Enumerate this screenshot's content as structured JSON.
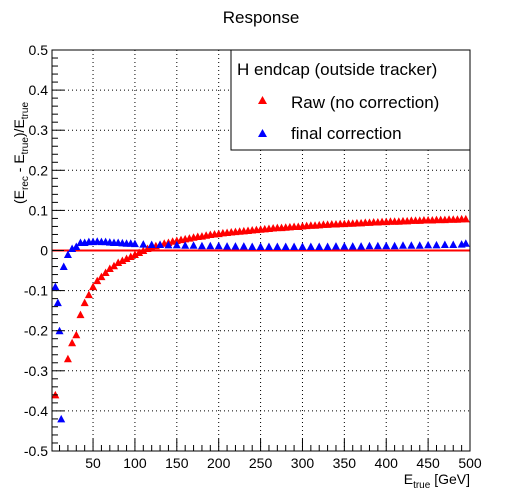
{
  "chart_data": {
    "type": "scatter",
    "title": "Response",
    "xlabel": {
      "main": "E",
      "sub": "true",
      "suffix": " [GeV]"
    },
    "ylabel": {
      "parts": [
        "(E",
        "rec",
        " - E",
        "true",
        ")/E",
        "true"
      ]
    },
    "xlim": [
      1,
      500
    ],
    "ylim": [
      -0.5,
      0.5
    ],
    "x_ticks": [
      50,
      100,
      150,
      200,
      250,
      300,
      350,
      400,
      450,
      500
    ],
    "y_ticks": [
      -0.5,
      -0.4,
      -0.3,
      -0.2,
      -0.1,
      0,
      0.1,
      0.2,
      0.3,
      0.4,
      0.5
    ],
    "grid": true,
    "reference_line": {
      "y": 0,
      "color": "#ff0000"
    },
    "legend": {
      "title": "H endcap (outside tracker)",
      "position": "top-right",
      "entries": [
        {
          "series": 0,
          "label": "Raw (no correction)"
        },
        {
          "series": 1,
          "label": "final correction"
        }
      ]
    },
    "series": [
      {
        "name": "Raw (no correction)",
        "color": "#ff0000",
        "marker": "triangle",
        "points": [
          [
            5,
            -0.36
          ],
          [
            20,
            -0.27
          ],
          [
            25,
            -0.23
          ],
          [
            30,
            -0.21
          ],
          [
            35,
            -0.16
          ],
          [
            40,
            -0.13
          ],
          [
            45,
            -0.11
          ],
          [
            50,
            -0.09
          ],
          [
            55,
            -0.075
          ],
          [
            60,
            -0.065
          ],
          [
            65,
            -0.055
          ],
          [
            70,
            -0.045
          ],
          [
            75,
            -0.038
          ],
          [
            80,
            -0.03
          ],
          [
            85,
            -0.025
          ],
          [
            90,
            -0.02
          ],
          [
            95,
            -0.015
          ],
          [
            100,
            -0.01
          ],
          [
            105,
            -0.005
          ],
          [
            110,
            0.0
          ],
          [
            115,
            0.005
          ],
          [
            120,
            0.008
          ],
          [
            125,
            0.012
          ],
          [
            130,
            0.015
          ],
          [
            135,
            0.018
          ],
          [
            140,
            0.02
          ],
          [
            145,
            0.023
          ],
          [
            150,
            0.025
          ],
          [
            155,
            0.027
          ],
          [
            160,
            0.029
          ],
          [
            165,
            0.031
          ],
          [
            170,
            0.033
          ],
          [
            175,
            0.035
          ],
          [
            180,
            0.036
          ],
          [
            185,
            0.038
          ],
          [
            190,
            0.04
          ],
          [
            195,
            0.041
          ],
          [
            200,
            0.042
          ],
          [
            205,
            0.044
          ],
          [
            210,
            0.045
          ],
          [
            215,
            0.046
          ],
          [
            220,
            0.047
          ],
          [
            225,
            0.048
          ],
          [
            230,
            0.049
          ],
          [
            235,
            0.05
          ],
          [
            240,
            0.051
          ],
          [
            245,
            0.052
          ],
          [
            250,
            0.053
          ],
          [
            255,
            0.054
          ],
          [
            260,
            0.055
          ],
          [
            265,
            0.056
          ],
          [
            270,
            0.057
          ],
          [
            275,
            0.057
          ],
          [
            280,
            0.058
          ],
          [
            285,
            0.059
          ],
          [
            290,
            0.06
          ],
          [
            295,
            0.06
          ],
          [
            300,
            0.061
          ],
          [
            305,
            0.062
          ],
          [
            310,
            0.063
          ],
          [
            315,
            0.063
          ],
          [
            320,
            0.064
          ],
          [
            325,
            0.065
          ],
          [
            330,
            0.065
          ],
          [
            335,
            0.066
          ],
          [
            340,
            0.066
          ],
          [
            345,
            0.067
          ],
          [
            350,
            0.067
          ],
          [
            355,
            0.068
          ],
          [
            360,
            0.068
          ],
          [
            365,
            0.069
          ],
          [
            370,
            0.069
          ],
          [
            375,
            0.07
          ],
          [
            380,
            0.07
          ],
          [
            385,
            0.071
          ],
          [
            390,
            0.071
          ],
          [
            395,
            0.072
          ],
          [
            400,
            0.072
          ],
          [
            405,
            0.073
          ],
          [
            410,
            0.073
          ],
          [
            415,
            0.073
          ],
          [
            420,
            0.074
          ],
          [
            425,
            0.074
          ],
          [
            430,
            0.075
          ],
          [
            435,
            0.075
          ],
          [
            440,
            0.075
          ],
          [
            445,
            0.076
          ],
          [
            450,
            0.076
          ],
          [
            455,
            0.076
          ],
          [
            460,
            0.077
          ],
          [
            465,
            0.077
          ],
          [
            470,
            0.077
          ],
          [
            475,
            0.078
          ],
          [
            480,
            0.078
          ],
          [
            485,
            0.078
          ],
          [
            490,
            0.079
          ],
          [
            495,
            0.079
          ]
        ]
      },
      {
        "name": "final correction",
        "color": "#0000ff",
        "marker": "triangle",
        "points": [
          [
            5,
            -0.09
          ],
          [
            8,
            -0.13
          ],
          [
            10,
            -0.2
          ],
          [
            12,
            -0.42
          ],
          [
            15,
            -0.04
          ],
          [
            20,
            -0.01
          ],
          [
            25,
            0.005
          ],
          [
            30,
            0.01
          ],
          [
            35,
            0.02
          ],
          [
            40,
            0.02
          ],
          [
            45,
            0.022
          ],
          [
            50,
            0.022
          ],
          [
            55,
            0.023
          ],
          [
            60,
            0.022
          ],
          [
            65,
            0.022
          ],
          [
            70,
            0.021
          ],
          [
            75,
            0.02
          ],
          [
            80,
            0.02
          ],
          [
            85,
            0.019
          ],
          [
            90,
            0.018
          ],
          [
            95,
            0.018
          ],
          [
            100,
            0.017
          ],
          [
            110,
            0.016
          ],
          [
            120,
            0.015
          ],
          [
            130,
            0.015
          ],
          [
            140,
            0.014
          ],
          [
            150,
            0.014
          ],
          [
            160,
            0.013
          ],
          [
            170,
            0.013
          ],
          [
            180,
            0.012
          ],
          [
            190,
            0.012
          ],
          [
            200,
            0.012
          ],
          [
            210,
            0.011
          ],
          [
            220,
            0.011
          ],
          [
            230,
            0.011
          ],
          [
            240,
            0.01
          ],
          [
            250,
            0.01
          ],
          [
            260,
            0.01
          ],
          [
            270,
            0.01
          ],
          [
            280,
            0.01
          ],
          [
            290,
            0.01
          ],
          [
            300,
            0.01
          ],
          [
            310,
            0.01
          ],
          [
            320,
            0.01
          ],
          [
            330,
            0.01
          ],
          [
            340,
            0.011
          ],
          [
            350,
            0.011
          ],
          [
            360,
            0.011
          ],
          [
            370,
            0.011
          ],
          [
            380,
            0.012
          ],
          [
            390,
            0.012
          ],
          [
            400,
            0.012
          ],
          [
            410,
            0.012
          ],
          [
            420,
            0.013
          ],
          [
            430,
            0.013
          ],
          [
            440,
            0.013
          ],
          [
            450,
            0.014
          ],
          [
            460,
            0.014
          ],
          [
            470,
            0.015
          ],
          [
            480,
            0.015
          ],
          [
            490,
            0.016
          ],
          [
            495,
            0.018
          ]
        ]
      }
    ]
  }
}
